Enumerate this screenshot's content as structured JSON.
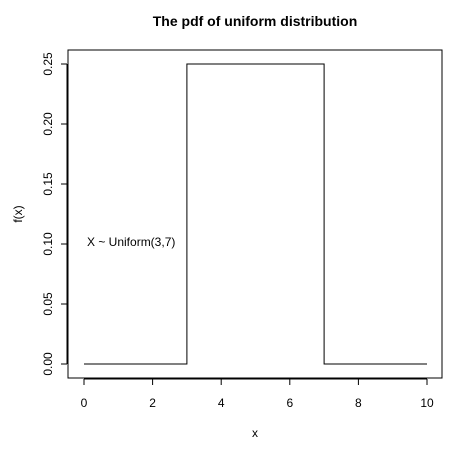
{
  "chart_data": {
    "type": "line",
    "title": "The pdf of uniform distribution",
    "xlabel": "x",
    "ylabel": "f(x)",
    "annotation": "X ~ Uniform(3,7)",
    "xlim": [
      0,
      10
    ],
    "ylim": [
      0,
      0.25
    ],
    "x_ticks": [
      0,
      2,
      4,
      6,
      8,
      10
    ],
    "y_ticks": [
      "0.00",
      "0.05",
      "0.10",
      "0.15",
      "0.20",
      "0.25"
    ],
    "grid": false,
    "series": [
      {
        "x": [
          0,
          3,
          3,
          7,
          7,
          10
        ],
        "y": [
          0,
          0,
          0.25,
          0.25,
          0,
          0
        ]
      }
    ],
    "colors": {
      "line": "#000000",
      "frame": "#000000"
    }
  }
}
